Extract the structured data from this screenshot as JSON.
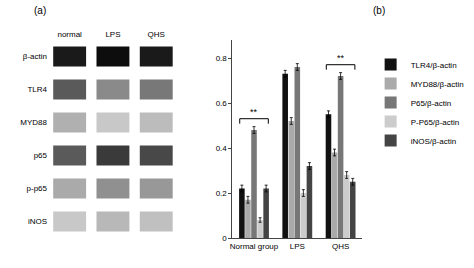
{
  "chart_data": [
    {
      "type": "blot",
      "title": "(a)",
      "categories": [
        "normal",
        "LPS",
        "QHS"
      ],
      "series": [
        {
          "name": "β-actin",
          "colors": [
            "#1a1a1a",
            "#0d0d0d",
            "#1a1a1a"
          ]
        },
        {
          "name": "TLR4",
          "colors": [
            "#5a5a5a",
            "#8a8a8a",
            "#787878"
          ]
        },
        {
          "name": "MYD88",
          "colors": [
            "#b0b0b0",
            "#c8c8c8",
            "#bcbcbc"
          ]
        },
        {
          "name": "p65",
          "colors": [
            "#5a5a5a",
            "#3a3a3a",
            "#484848"
          ]
        },
        {
          "name": "p-p65",
          "colors": [
            "#aaaaaa",
            "#909090",
            "#989898"
          ]
        },
        {
          "name": "iNOS",
          "colors": [
            "#c8c8c8",
            "#b8b8b8",
            "#c0c0c0"
          ]
        }
      ]
    },
    {
      "type": "bar",
      "title": "(b)",
      "categories": [
        "Normal group",
        "LPS",
        "QHS"
      ],
      "series": [
        {
          "name": "TLR4/β-actin",
          "color": "#111111",
          "values": [
            0.22,
            0.73,
            0.55
          ],
          "errors": [
            0.015,
            0.015,
            0.015
          ]
        },
        {
          "name": "MYD88/β-actin",
          "color": "#aaaaaa",
          "values": [
            0.17,
            0.52,
            0.38
          ],
          "errors": [
            0.015,
            0.015,
            0.015
          ]
        },
        {
          "name": "P65/β-actin",
          "color": "#777777",
          "values": [
            0.48,
            0.76,
            0.72
          ],
          "errors": [
            0.015,
            0.015,
            0.015
          ]
        },
        {
          "name": "P-P65/β-actin",
          "color": "#cccccc",
          "values": [
            0.08,
            0.2,
            0.28
          ],
          "errors": [
            0.01,
            0.015,
            0.015
          ]
        },
        {
          "name": "iNOS/β-actin",
          "color": "#444444",
          "values": [
            0.22,
            0.32,
            0.25
          ],
          "errors": [
            0.015,
            0.015,
            0.015
          ]
        }
      ],
      "ylim": [
        0,
        0.88
      ],
      "yticks": [
        0.0,
        0.2,
        0.4,
        0.6,
        0.8
      ],
      "grid": false,
      "legend": "right",
      "annotations": [
        {
          "text": "**",
          "category": "Normal group"
        },
        {
          "text": "**",
          "category": "QHS"
        }
      ]
    }
  ]
}
